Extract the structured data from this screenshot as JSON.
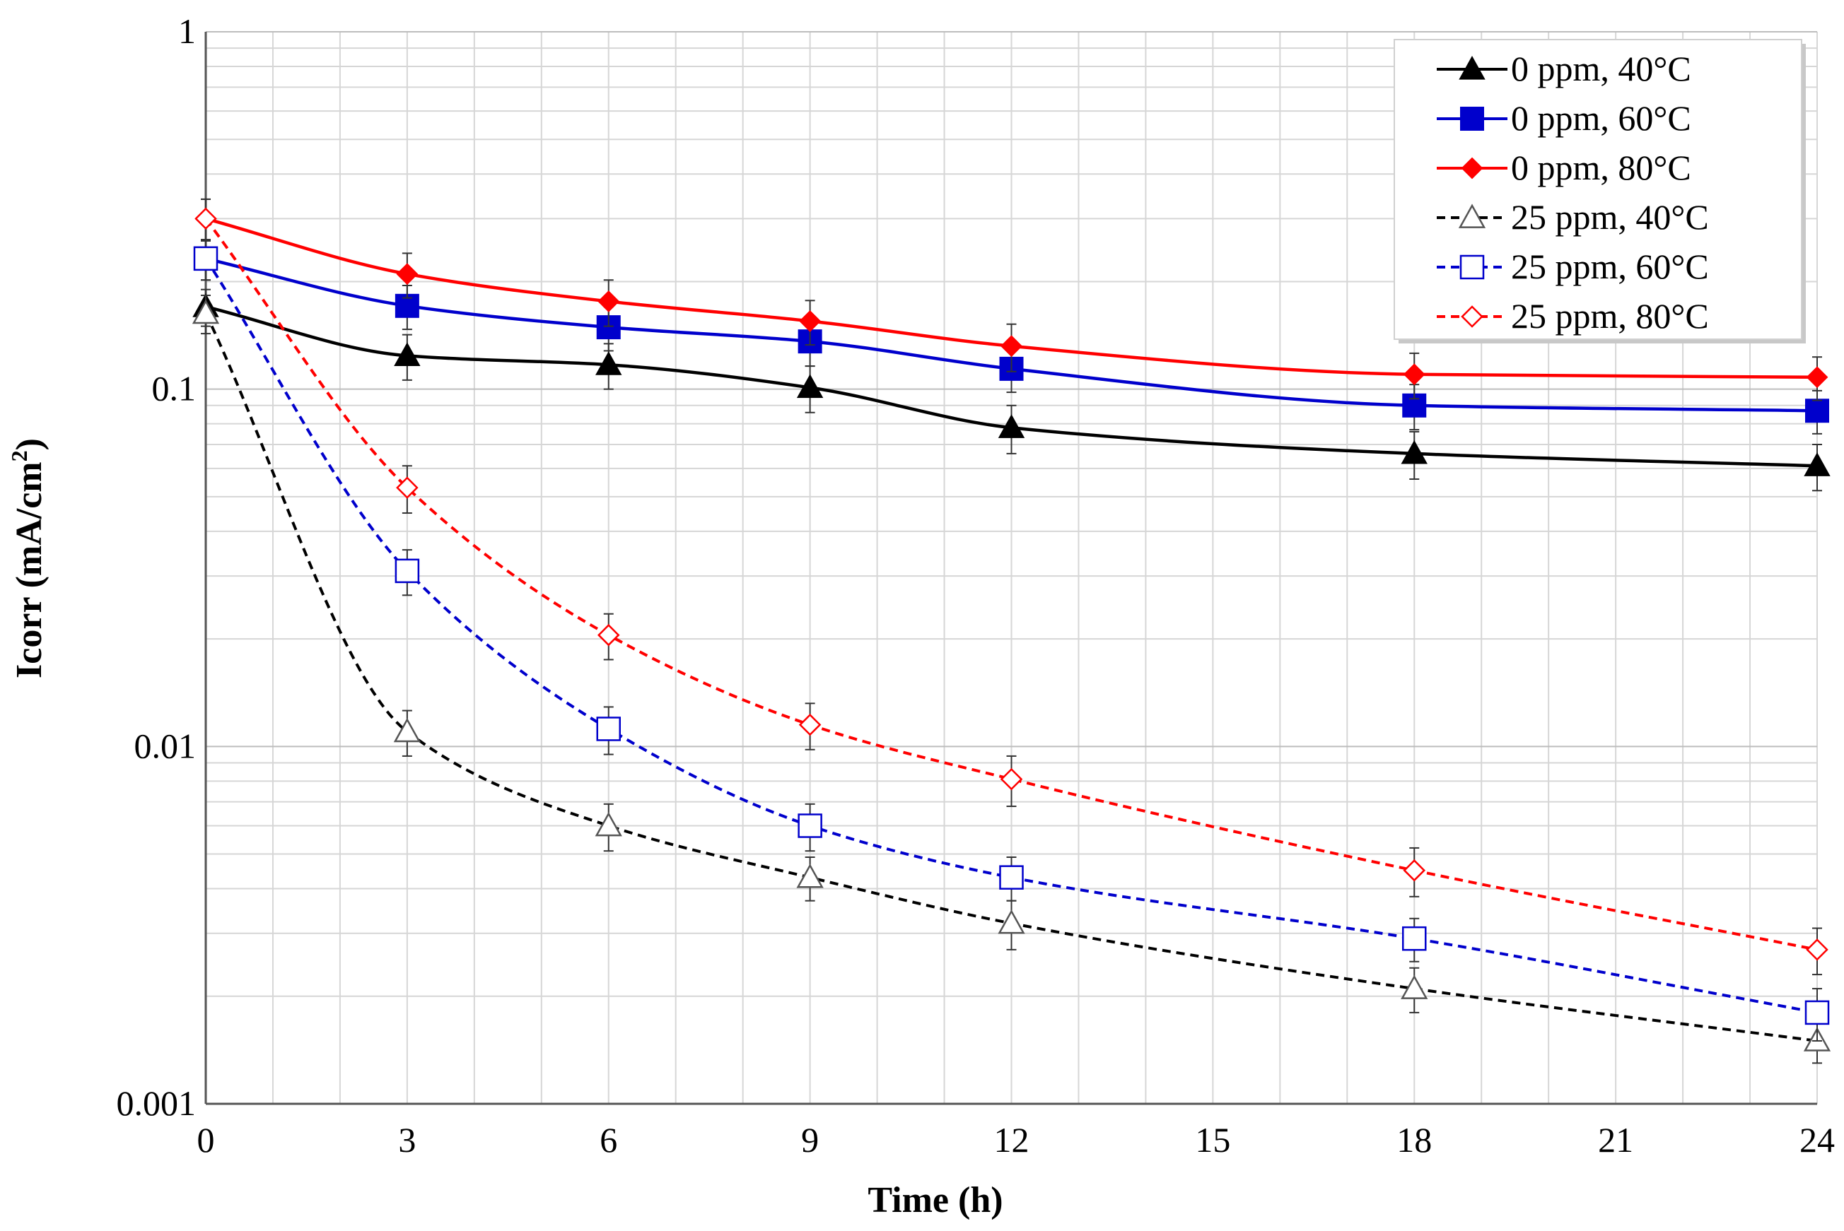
{
  "chart_data": {
    "type": "line",
    "title": "",
    "xlabel": "Time (h)",
    "ylabel_main": "Icorr (mA/cm",
    "ylabel_sup": "2",
    "ylabel_close": ")",
    "xlim": [
      0,
      24
    ],
    "ylim": [
      0.001,
      1
    ],
    "yscale": "log",
    "grid": true,
    "legend_position": "top-right",
    "x_ticks": [
      0,
      3,
      6,
      9,
      12,
      15,
      18,
      21,
      24
    ],
    "x_tick_labels": [
      "0",
      "3",
      "6",
      "9",
      "12",
      "15",
      "18",
      "21",
      "24"
    ],
    "y_ticks": [
      0.001,
      0.01,
      0.1,
      1
    ],
    "y_tick_labels": [
      "0.001",
      "0.01",
      "0.1",
      "1"
    ],
    "x": [
      0,
      3,
      6,
      9,
      12,
      18,
      24
    ],
    "series": [
      {
        "name": "0 ppm, 40°C",
        "color": "#000000",
        "dash": false,
        "marker": "triangle",
        "filled": true,
        "values": [
          0.17,
          0.124,
          0.117,
          0.101,
          0.078,
          0.066,
          0.061
        ],
        "errors": [
          0.02,
          0.018,
          0.017,
          0.015,
          0.012,
          0.01,
          0.009
        ]
      },
      {
        "name": "0 ppm, 60°C",
        "color": "#0000cc",
        "dash": false,
        "marker": "square",
        "filled": true,
        "values": [
          0.232,
          0.171,
          0.149,
          0.136,
          0.114,
          0.09,
          0.087
        ],
        "errors": [
          0.03,
          0.024,
          0.021,
          0.02,
          0.016,
          0.013,
          0.012
        ]
      },
      {
        "name": "0 ppm, 80°C",
        "color": "#ff0000",
        "dash": false,
        "marker": "diamond",
        "filled": true,
        "values": [
          0.3,
          0.21,
          0.176,
          0.155,
          0.132,
          0.11,
          0.108
        ],
        "errors": [
          0.04,
          0.03,
          0.026,
          0.022,
          0.02,
          0.016,
          0.015
        ]
      },
      {
        "name": "25 ppm, 40°C",
        "color": "#000000",
        "dash": true,
        "marker": "triangle",
        "filled": false,
        "values": [
          0.163,
          0.011,
          0.006,
          0.0043,
          0.0032,
          0.0021,
          0.0015
        ],
        "errors": [
          0.02,
          0.0016,
          0.0009,
          0.0006,
          0.0005,
          0.0003,
          0.0002
        ]
      },
      {
        "name": "25 ppm, 60°C",
        "color": "#0000cc",
        "dash": true,
        "marker": "square",
        "filled": false,
        "values": [
          0.232,
          0.031,
          0.0112,
          0.006,
          0.0043,
          0.0029,
          0.0018
        ],
        "errors": [
          0.03,
          0.0045,
          0.0017,
          0.0009,
          0.0006,
          0.0004,
          0.0003
        ]
      },
      {
        "name": "25 ppm, 80°C",
        "color": "#ff0000",
        "dash": true,
        "marker": "diamond",
        "filled": false,
        "values": [
          0.3,
          0.053,
          0.0205,
          0.0115,
          0.0081,
          0.0045,
          0.0027
        ],
        "errors": [
          0.04,
          0.008,
          0.003,
          0.0017,
          0.0013,
          0.0007,
          0.0004
        ]
      }
    ]
  }
}
